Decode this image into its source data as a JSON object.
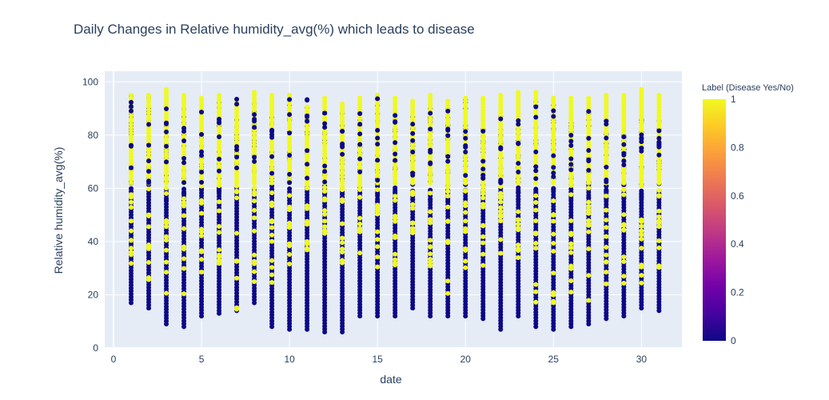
{
  "chart_data": {
    "type": "scatter",
    "title": "Daily Changes in Relative humidity_avg(%) which leads to disease",
    "xlabel": "date",
    "ylabel": "Relative humidity_avg(%)",
    "xlim": [
      -0.5,
      32.3
    ],
    "ylim": [
      0,
      104
    ],
    "x_ticks": [
      0,
      5,
      10,
      15,
      20,
      25,
      30
    ],
    "y_ticks": [
      0,
      20,
      40,
      60,
      80,
      100
    ],
    "grid": true,
    "background_color": "#e5ecf6",
    "colorbar": {
      "title": "Label (Disease Yes/No)",
      "range": [
        0,
        1
      ],
      "ticks": [
        0,
        0.2,
        0.4,
        0.6,
        0.8,
        1
      ],
      "colorscale": [
        "#0d0887",
        "#46039f",
        "#7201a8",
        "#9c179e",
        "#bd3786",
        "#d8576b",
        "#ed7953",
        "#fb9f3a",
        "#fdca26",
        "#f0f921"
      ]
    },
    "series_bands": {
      "days": [
        1,
        2,
        3,
        4,
        5,
        6,
        7,
        8,
        9,
        10,
        11,
        12,
        13,
        14,
        15,
        16,
        17,
        18,
        19,
        20,
        21,
        22,
        23,
        24,
        25,
        26,
        27,
        28,
        29,
        30,
        31
      ],
      "label_0_min": [
        17,
        15,
        9,
        8,
        12,
        13,
        14,
        17,
        8,
        7,
        7,
        6,
        6,
        12,
        12,
        12,
        15,
        12,
        12,
        12,
        11,
        7,
        12,
        8,
        7,
        8,
        9,
        11,
        12,
        15,
        14
      ],
      "label_0_max": [
        95,
        95,
        90,
        92,
        92,
        95,
        95,
        92,
        93,
        94,
        94,
        94,
        92,
        93,
        95,
        88,
        90,
        90,
        90,
        94,
        84,
        89,
        87,
        96,
        96,
        86,
        91,
        88,
        80,
        87,
        88
      ],
      "label_1_min": [
        28,
        22,
        20,
        20,
        24,
        23,
        13,
        24,
        23,
        30,
        36,
        42,
        30,
        32,
        27,
        31,
        40,
        25,
        20,
        28,
        27,
        17,
        28,
        16,
        17,
        19,
        17,
        21,
        21,
        23,
        30
      ],
      "label_1_max": [
        96,
        96,
        98,
        95,
        94,
        95,
        93,
        97,
        96,
        95,
        91,
        94,
        92,
        94,
        95,
        94,
        93,
        95,
        93,
        94,
        94,
        95,
        97,
        97,
        94,
        94,
        94,
        95,
        95,
        98,
        96
      ]
    }
  }
}
